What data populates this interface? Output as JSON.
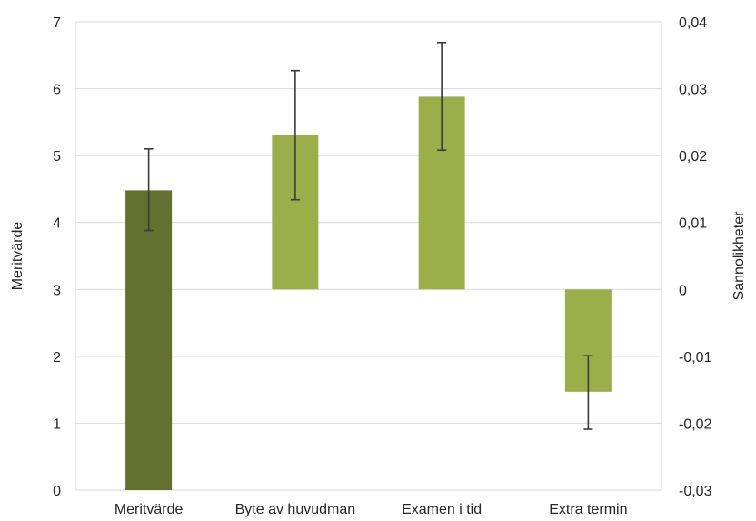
{
  "chart_data": {
    "type": "bar",
    "categories": [
      "Meritvärde",
      "Byte av huvudman",
      "Examen i tid",
      "Extra termin"
    ],
    "ylabel": "Meritvärde",
    "y2label": "Sannolikheter",
    "ylim": [
      0,
      7
    ],
    "y2lim": [
      -0.03,
      0.04
    ],
    "yticks": [
      "0",
      "1",
      "2",
      "3",
      "4",
      "5",
      "6",
      "7"
    ],
    "y2ticks": [
      "-0,03",
      "-0,02",
      "-0,01",
      "0",
      "0,01",
      "0,02",
      "0,03",
      "0,04"
    ],
    "grid": true,
    "legend": "none",
    "bars": [
      {
        "category": "Meritvärde",
        "axis": "left",
        "value": 4.48,
        "err_low": 3.88,
        "err_high": 5.1,
        "color": "#637030"
      },
      {
        "category": "Byte av huvudman",
        "axis": "right",
        "value": 0.0231,
        "err_low": 0.0134,
        "err_high": 0.0327,
        "color": "#9BAE4A"
      },
      {
        "category": "Examen i tid",
        "axis": "right",
        "value": 0.0288,
        "err_low": 0.0208,
        "err_high": 0.0369,
        "color": "#9BAE4A"
      },
      {
        "category": "Extra termin",
        "axis": "right",
        "value": -0.0153,
        "err_low": -0.0209,
        "err_high": -0.0099,
        "color": "#9BAE4A"
      }
    ]
  }
}
